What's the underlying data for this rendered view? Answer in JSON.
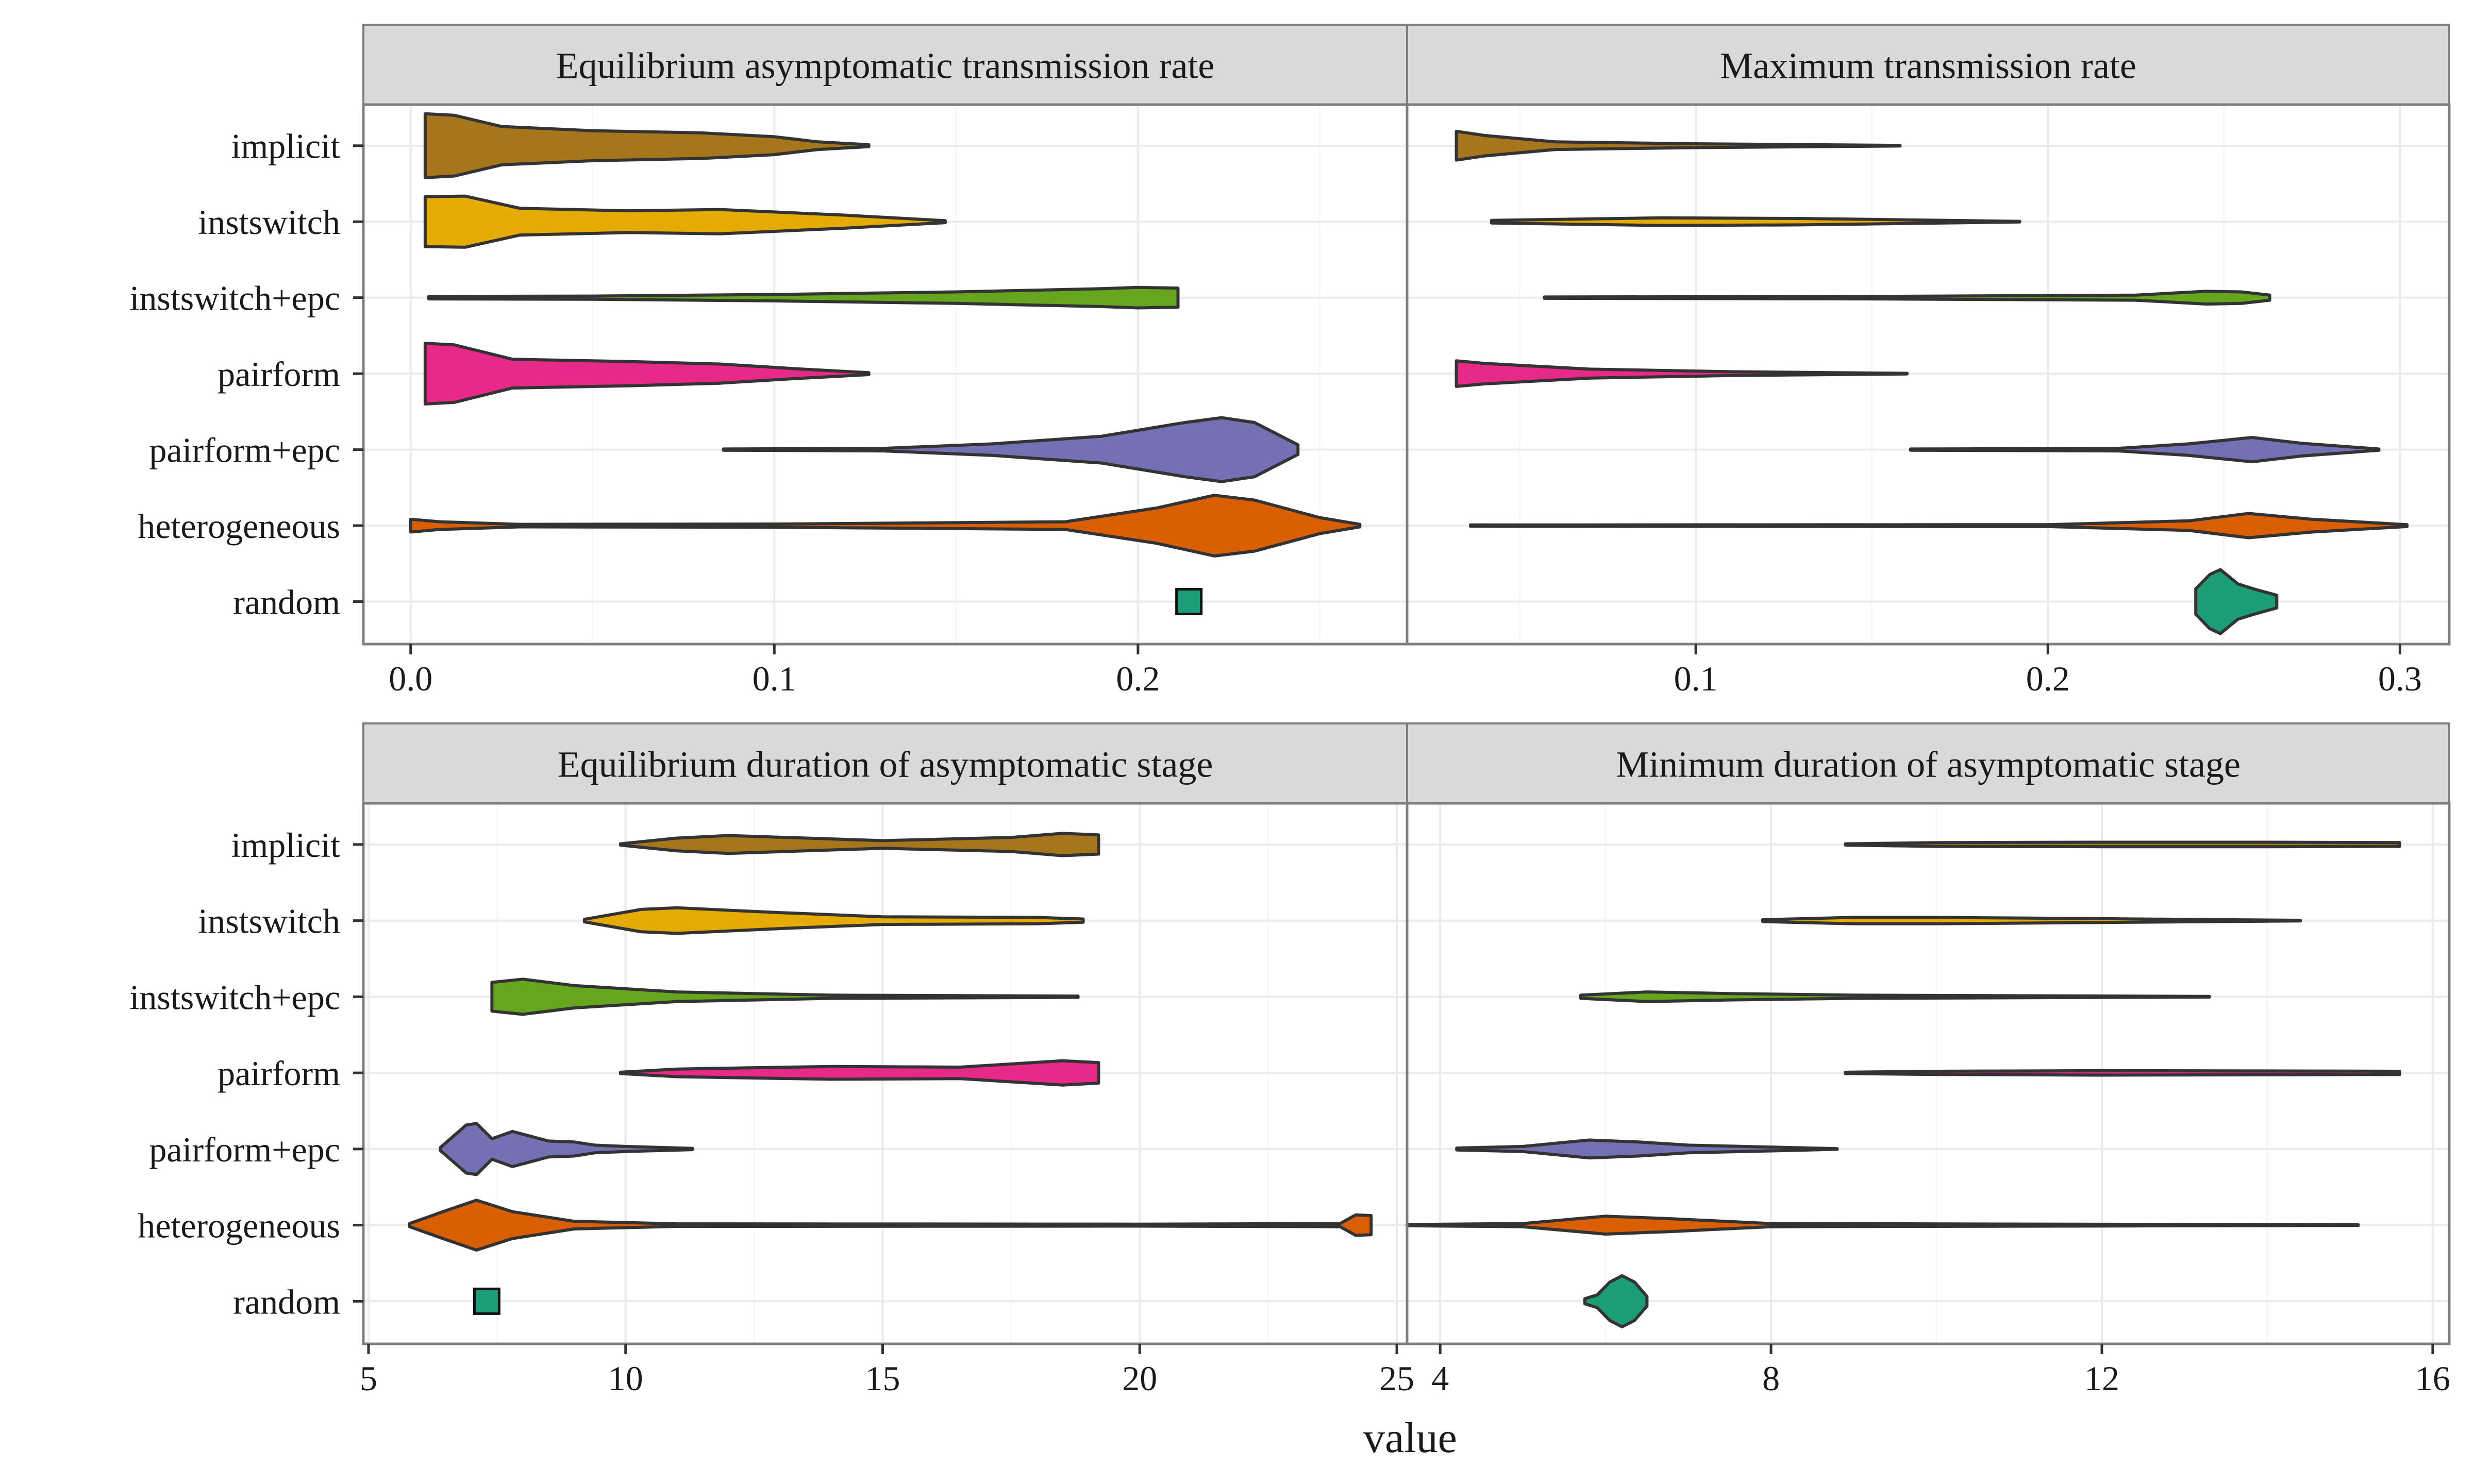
{
  "figure": {
    "xlabel": "value"
  },
  "categories": [
    "implicit",
    "instswitch",
    "instswitch+epc",
    "pairform",
    "pairform+epc",
    "heterogeneous",
    "random"
  ],
  "colors": {
    "implicit": "#a6761d",
    "instswitch": "#e6ab02",
    "instswitch+epc": "#66a61e",
    "pairform": "#e7298a",
    "pairform+epc": "#7570b3",
    "heterogeneous": "#d95f02",
    "random": "#1b9e77",
    "strip_bg": "#d9d9d9",
    "outline": "#333333",
    "grid_major": "#ebebeb",
    "grid_minor": "#f5f5f5"
  },
  "chart_data": [
    {
      "type": "violin",
      "panel": "Equilibrium asymptomatic transmission rate",
      "xlim": [
        -0.013,
        0.274
      ],
      "ticks": [
        0.0,
        0.1,
        0.2
      ],
      "tick_labels": [
        "0.0",
        "0.1",
        "0.2"
      ],
      "series": [
        {
          "name": "implicit",
          "min": 0.004,
          "max": 0.126,
          "profile": [
            [
              0.004,
              1.0
            ],
            [
              0.012,
              0.95
            ],
            [
              0.025,
              0.6
            ],
            [
              0.05,
              0.47
            ],
            [
              0.08,
              0.4
            ],
            [
              0.1,
              0.28
            ],
            [
              0.112,
              0.12
            ],
            [
              0.126,
              0.03
            ]
          ]
        },
        {
          "name": "instswitch",
          "min": 0.004,
          "max": 0.147,
          "profile": [
            [
              0.004,
              0.78
            ],
            [
              0.015,
              0.8
            ],
            [
              0.03,
              0.42
            ],
            [
              0.06,
              0.34
            ],
            [
              0.085,
              0.38
            ],
            [
              0.12,
              0.2
            ],
            [
              0.147,
              0.03
            ]
          ]
        },
        {
          "name": "instswitch+epc",
          "min": 0.005,
          "max": 0.211,
          "profile": [
            [
              0.005,
              0.04
            ],
            [
              0.05,
              0.05
            ],
            [
              0.1,
              0.1
            ],
            [
              0.15,
              0.18
            ],
            [
              0.19,
              0.28
            ],
            [
              0.2,
              0.32
            ],
            [
              0.211,
              0.3
            ]
          ]
        },
        {
          "name": "pairform",
          "min": 0.004,
          "max": 0.126,
          "profile": [
            [
              0.004,
              0.95
            ],
            [
              0.012,
              0.9
            ],
            [
              0.028,
              0.45
            ],
            [
              0.06,
              0.38
            ],
            [
              0.085,
              0.3
            ],
            [
              0.105,
              0.16
            ],
            [
              0.126,
              0.03
            ]
          ]
        },
        {
          "name": "pairform+epc",
          "min": 0.086,
          "max": 0.244,
          "profile": [
            [
              0.086,
              0.02
            ],
            [
              0.13,
              0.04
            ],
            [
              0.16,
              0.18
            ],
            [
              0.19,
              0.42
            ],
            [
              0.213,
              0.85
            ],
            [
              0.223,
              1.0
            ],
            [
              0.232,
              0.85
            ],
            [
              0.244,
              0.15
            ]
          ]
        },
        {
          "name": "heterogeneous",
          "min": 0.0,
          "max": 0.261,
          "profile": [
            [
              0.0,
              0.2
            ],
            [
              0.008,
              0.12
            ],
            [
              0.03,
              0.04
            ],
            [
              0.1,
              0.05
            ],
            [
              0.18,
              0.12
            ],
            [
              0.205,
              0.55
            ],
            [
              0.221,
              0.95
            ],
            [
              0.232,
              0.8
            ],
            [
              0.25,
              0.25
            ],
            [
              0.261,
              0.04
            ]
          ]
        }
      ],
      "points": [
        {
          "name": "random",
          "value": 0.214
        }
      ]
    },
    {
      "type": "violin",
      "panel": "Maximum transmission rate",
      "xlim": [
        0.018,
        0.314
      ],
      "ticks": [
        0.1,
        0.2,
        0.3
      ],
      "tick_labels": [
        "0.1",
        "0.2",
        "0.3"
      ],
      "series": [
        {
          "name": "implicit",
          "min": 0.032,
          "max": 0.158,
          "profile": [
            [
              0.032,
              0.45
            ],
            [
              0.04,
              0.32
            ],
            [
              0.06,
              0.12
            ],
            [
              0.1,
              0.06
            ],
            [
              0.158,
              0.01
            ]
          ]
        },
        {
          "name": "instswitch",
          "min": 0.042,
          "max": 0.192,
          "profile": [
            [
              0.042,
              0.04
            ],
            [
              0.09,
              0.12
            ],
            [
              0.13,
              0.1
            ],
            [
              0.192,
              0.01
            ]
          ]
        },
        {
          "name": "instswitch+epc",
          "min": 0.057,
          "max": 0.263,
          "profile": [
            [
              0.057,
              0.02
            ],
            [
              0.15,
              0.04
            ],
            [
              0.225,
              0.08
            ],
            [
              0.245,
              0.2
            ],
            [
              0.255,
              0.18
            ],
            [
              0.263,
              0.08
            ]
          ]
        },
        {
          "name": "pairform",
          "min": 0.032,
          "max": 0.16,
          "profile": [
            [
              0.032,
              0.4
            ],
            [
              0.04,
              0.32
            ],
            [
              0.07,
              0.14
            ],
            [
              0.11,
              0.06
            ],
            [
              0.16,
              0.01
            ]
          ]
        },
        {
          "name": "pairform+epc",
          "min": 0.161,
          "max": 0.294,
          "profile": [
            [
              0.161,
              0.02
            ],
            [
              0.22,
              0.04
            ],
            [
              0.24,
              0.18
            ],
            [
              0.258,
              0.38
            ],
            [
              0.272,
              0.2
            ],
            [
              0.294,
              0.02
            ]
          ]
        },
        {
          "name": "heterogeneous",
          "min": 0.036,
          "max": 0.302,
          "profile": [
            [
              0.036,
              0.02
            ],
            [
              0.2,
              0.03
            ],
            [
              0.24,
              0.15
            ],
            [
              0.257,
              0.38
            ],
            [
              0.275,
              0.2
            ],
            [
              0.302,
              0.03
            ]
          ]
        },
        {
          "name": "random",
          "min": 0.242,
          "max": 0.265,
          "profile": [
            [
              0.242,
              0.4
            ],
            [
              0.246,
              0.85
            ],
            [
              0.249,
              1.0
            ],
            [
              0.254,
              0.55
            ],
            [
              0.259,
              0.38
            ],
            [
              0.265,
              0.2
            ]
          ]
        }
      ]
    },
    {
      "type": "violin",
      "panel": "Equilibrium duration of asymptomatic stage",
      "xlim": [
        4.9,
        25.2
      ],
      "ticks": [
        5,
        10,
        15,
        20,
        25
      ],
      "tick_labels": [
        "5",
        "10",
        "15",
        "20",
        "25"
      ],
      "series": [
        {
          "name": "implicit",
          "min": 9.9,
          "max": 19.2,
          "profile": [
            [
              9.9,
              0.02
            ],
            [
              11,
              0.2
            ],
            [
              12,
              0.28
            ],
            [
              15,
              0.12
            ],
            [
              17.5,
              0.22
            ],
            [
              18.5,
              0.35
            ],
            [
              19.2,
              0.3
            ]
          ]
        },
        {
          "name": "instswitch",
          "min": 9.2,
          "max": 18.9,
          "profile": [
            [
              9.2,
              0.04
            ],
            [
              10.3,
              0.35
            ],
            [
              11,
              0.4
            ],
            [
              13,
              0.25
            ],
            [
              15,
              0.12
            ],
            [
              18,
              0.1
            ],
            [
              18.9,
              0.05
            ]
          ]
        },
        {
          "name": "instswitch+epc",
          "min": 7.4,
          "max": 18.8,
          "profile": [
            [
              7.4,
              0.45
            ],
            [
              8,
              0.55
            ],
            [
              9,
              0.35
            ],
            [
              11,
              0.15
            ],
            [
              14,
              0.05
            ],
            [
              18.8,
              0.02
            ]
          ]
        },
        {
          "name": "pairform",
          "min": 9.9,
          "max": 19.2,
          "profile": [
            [
              9.9,
              0.02
            ],
            [
              11,
              0.12
            ],
            [
              14,
              0.2
            ],
            [
              16.5,
              0.18
            ],
            [
              18.5,
              0.38
            ],
            [
              19.2,
              0.32
            ]
          ]
        },
        {
          "name": "pairform+epc",
          "min": 6.4,
          "max": 11.3,
          "profile": [
            [
              6.4,
              0.05
            ],
            [
              6.9,
              0.75
            ],
            [
              7.1,
              0.8
            ],
            [
              7.4,
              0.32
            ],
            [
              7.8,
              0.55
            ],
            [
              8.5,
              0.25
            ],
            [
              9,
              0.22
            ],
            [
              9.4,
              0.12
            ],
            [
              10,
              0.08
            ],
            [
              11.3,
              0.02
            ]
          ]
        },
        {
          "name": "heterogeneous",
          "min": 5.8,
          "max": 24.5,
          "profile": [
            [
              5.8,
              0.05
            ],
            [
              6.5,
              0.45
            ],
            [
              7.1,
              0.78
            ],
            [
              7.8,
              0.42
            ],
            [
              9,
              0.12
            ],
            [
              11,
              0.04
            ],
            [
              20,
              0.03
            ],
            [
              23.9,
              0.05
            ],
            [
              24.2,
              0.32
            ],
            [
              24.5,
              0.3
            ]
          ]
        }
      ],
      "points": [
        {
          "name": "random",
          "value": 7.3
        }
      ]
    },
    {
      "type": "violin",
      "panel": "Minimum duration of asymptomatic stage",
      "xlim": [
        3.6,
        16.2
      ],
      "ticks": [
        4,
        8,
        12,
        16
      ],
      "tick_labels": [
        "4",
        "8",
        "12",
        "16"
      ],
      "series": [
        {
          "name": "implicit",
          "min": 8.9,
          "max": 15.6,
          "profile": [
            [
              8.9,
              0.02
            ],
            [
              10,
              0.06
            ],
            [
              12,
              0.07
            ],
            [
              14,
              0.07
            ],
            [
              15.6,
              0.06
            ]
          ]
        },
        {
          "name": "instswitch",
          "min": 7.9,
          "max": 14.4,
          "profile": [
            [
              7.9,
              0.03
            ],
            [
              9,
              0.1
            ],
            [
              10,
              0.1
            ],
            [
              12,
              0.06
            ],
            [
              14.4,
              0.01
            ]
          ]
        },
        {
          "name": "instswitch+epc",
          "min": 5.7,
          "max": 13.3,
          "profile": [
            [
              5.7,
              0.05
            ],
            [
              6.5,
              0.15
            ],
            [
              7.5,
              0.1
            ],
            [
              9,
              0.05
            ],
            [
              13.3,
              0.01
            ]
          ]
        },
        {
          "name": "pairform",
          "min": 8.9,
          "max": 15.6,
          "profile": [
            [
              8.9,
              0.02
            ],
            [
              10,
              0.05
            ],
            [
              12,
              0.07
            ],
            [
              14,
              0.06
            ],
            [
              15.6,
              0.05
            ]
          ]
        },
        {
          "name": "pairform+epc",
          "min": 4.2,
          "max": 8.8,
          "profile": [
            [
              4.2,
              0.03
            ],
            [
              5,
              0.08
            ],
            [
              5.8,
              0.28
            ],
            [
              6.4,
              0.22
            ],
            [
              7,
              0.12
            ],
            [
              8.8,
              0.01
            ]
          ]
        },
        {
          "name": "heterogeneous",
          "min": 3.6,
          "max": 15.1,
          "profile": [
            [
              3.6,
              0.02
            ],
            [
              5,
              0.05
            ],
            [
              6,
              0.28
            ],
            [
              6.8,
              0.2
            ],
            [
              8,
              0.05
            ],
            [
              15.1,
              0.01
            ]
          ]
        },
        {
          "name": "random",
          "min": 5.75,
          "max": 6.5,
          "profile": [
            [
              5.75,
              0.08
            ],
            [
              5.9,
              0.2
            ],
            [
              6.05,
              0.6
            ],
            [
              6.2,
              0.8
            ],
            [
              6.35,
              0.6
            ],
            [
              6.5,
              0.15
            ]
          ]
        }
      ]
    }
  ]
}
